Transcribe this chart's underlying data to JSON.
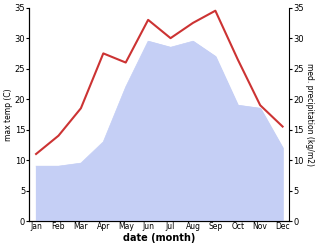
{
  "months": [
    "Jan",
    "Feb",
    "Mar",
    "Apr",
    "May",
    "Jun",
    "Jul",
    "Aug",
    "Sep",
    "Oct",
    "Nov",
    "Dec"
  ],
  "temp": [
    11.0,
    14.0,
    18.5,
    27.5,
    26.0,
    33.0,
    30.0,
    32.5,
    34.5,
    26.5,
    19.0,
    15.5
  ],
  "precip": [
    9.0,
    9.0,
    9.5,
    13.0,
    22.0,
    29.5,
    28.5,
    29.5,
    27.0,
    19.0,
    18.5,
    12.0
  ],
  "temp_color": "#cc3333",
  "precip_fill_color": "#c5cff5",
  "ylim": [
    0,
    35
  ],
  "xlabel": "date (month)",
  "ylabel_left": "max temp (C)",
  "ylabel_right": "med. precipitation (kg/m2)",
  "background_color": "#ffffff",
  "yticks": [
    0,
    5,
    10,
    15,
    20,
    25,
    30,
    35
  ]
}
